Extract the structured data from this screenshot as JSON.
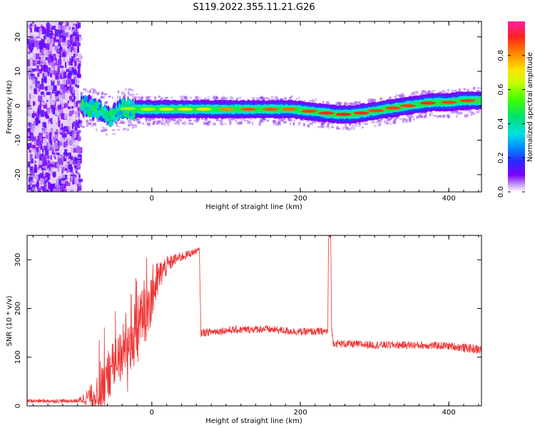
{
  "figure_title": "S119.2022.355.11.21.G26",
  "chart_data": [
    {
      "type": "heatmap",
      "title": "",
      "xlabel": "Height of straight line (km)",
      "ylabel": "Frequency (Hz)",
      "xlim": [
        -168,
        444
      ],
      "ylim": [
        -25,
        24.5
      ],
      "xticks": [
        0,
        200,
        400
      ],
      "yticks": [
        -20,
        -10,
        0,
        10,
        20
      ],
      "noise_region_x": [
        -168,
        -98
      ],
      "colorbar": {
        "label": "Normalized spectral amplitude",
        "range": [
          0,
          1
        ],
        "ticks": [
          "0.0",
          "0.2",
          "0.4",
          "0.6",
          "0.8"
        ],
        "tick_values": [
          0.0,
          0.2,
          0.4,
          0.6,
          0.8
        ]
      },
      "ridge": {
        "x": [
          -95,
          -80,
          -65,
          -55,
          -48,
          -42,
          -36,
          -30,
          -25,
          0,
          50,
          100,
          150,
          190,
          210,
          230,
          250,
          270,
          285,
          300,
          315,
          330,
          345,
          360,
          380,
          400,
          420,
          444
        ],
        "freq": [
          0.0,
          -0.5,
          -2.0,
          -3.0,
          -1.5,
          -1.0,
          -0.5,
          -1.0,
          -1.0,
          -1.0,
          -1.0,
          -1.0,
          -1.0,
          -1.0,
          -1.5,
          -2.0,
          -2.5,
          -2.5,
          -2.0,
          -1.5,
          -1.0,
          -0.5,
          0.0,
          0.5,
          1.0,
          1.0,
          1.5,
          1.5
        ]
      }
    },
    {
      "type": "line",
      "title": "",
      "xlabel": "Height of straight line (km)",
      "ylabel": "SNR (10 * v/v)",
      "xlim": [
        -168,
        444
      ],
      "ylim": [
        0,
        350
      ],
      "xticks": [
        0,
        200,
        400
      ],
      "yticks": [
        0,
        100,
        200,
        300
      ],
      "color": "#ee3333",
      "envelope": {
        "x": [
          -168,
          -100,
          -75,
          -60,
          -50,
          -35,
          -20,
          -10,
          0,
          15,
          30,
          50,
          64,
          66,
          100,
          150,
          200,
          237,
          238,
          241,
          242,
          244,
          250,
          300,
          350,
          400,
          444
        ],
        "center": [
          10,
          10,
          25,
          50,
          90,
          110,
          160,
          190,
          230,
          280,
          300,
          312,
          320,
          150,
          155,
          158,
          152,
          153,
          350,
          350,
          160,
          130,
          128,
          125,
          125,
          123,
          115
        ],
        "spread": [
          4,
          4,
          30,
          50,
          50,
          60,
          70,
          70,
          60,
          25,
          12,
          8,
          6,
          8,
          8,
          8,
          8,
          8,
          5,
          5,
          8,
          8,
          8,
          8,
          8,
          8,
          10
        ]
      }
    }
  ]
}
